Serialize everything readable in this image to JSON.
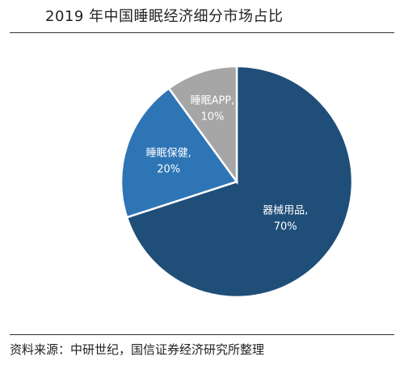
{
  "title": "2019 年中国睡眠经济细分市场占比",
  "source": "资料来源：中研世纪，国信证券经济研究所整理",
  "chart_data": {
    "type": "pie",
    "title": "2019 年中国睡眠经济细分市场占比",
    "series": [
      {
        "values": [
          {
            "label": "器械用品,",
            "pct": "70%",
            "value": 70,
            "color": "#1f4e79"
          },
          {
            "label": "睡眠保健,",
            "pct": "20%",
            "value": 20,
            "color": "#2e75b6"
          },
          {
            "label": "睡眠APP,",
            "pct": "10%",
            "value": 10,
            "color": "#a6a6a6"
          }
        ]
      }
    ],
    "start_angle_deg": 0,
    "direction": "clockwise",
    "legend": "none"
  }
}
